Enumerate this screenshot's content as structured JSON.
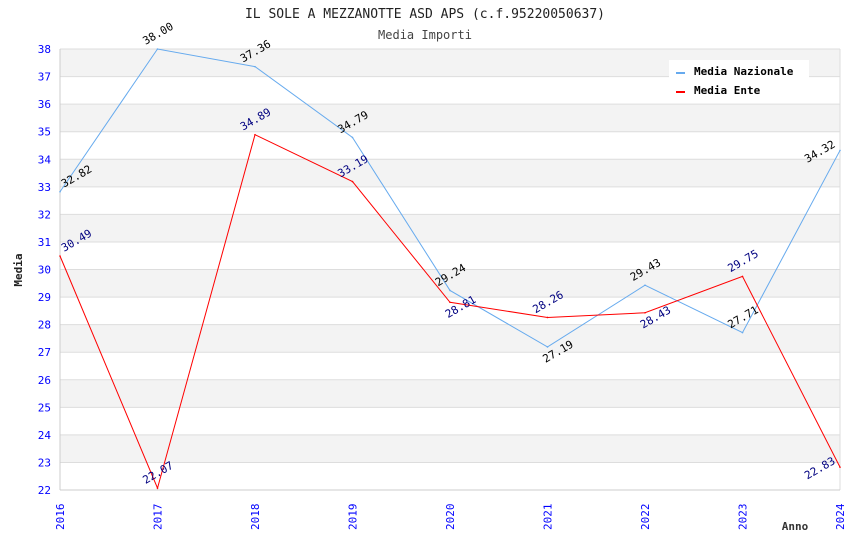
{
  "chart_data": {
    "type": "line",
    "title": "IL SOLE A MEZZANOTTE ASD APS (c.f.95220050637)",
    "subtitle": "Media Importi",
    "xlabel": "Anno",
    "ylabel": "Media",
    "x": [
      "2016",
      "2017",
      "2018",
      "2019",
      "2020",
      "2021",
      "2022",
      "2023",
      "2024"
    ],
    "ylim": [
      22,
      38
    ],
    "yticks": [
      "22",
      "23",
      "24",
      "25",
      "26",
      "27",
      "28",
      "29",
      "30",
      "31",
      "32",
      "33",
      "34",
      "35",
      "36",
      "37",
      "38"
    ],
    "grid": true,
    "legend_position": "top-right",
    "series": [
      {
        "name": "Media Nazionale",
        "color": "#66aaee",
        "label_color": "#000000",
        "values": [
          32.82,
          38.0,
          37.36,
          34.79,
          29.24,
          27.19,
          29.43,
          27.71,
          34.32
        ],
        "labels": [
          "32.82",
          "38.00",
          "37.36",
          "34.79",
          "29.24",
          "27.19",
          "29.43",
          "27.71",
          "34.32"
        ]
      },
      {
        "name": "Media Ente",
        "color": "#ff0000",
        "label_color": "#000080",
        "values": [
          30.49,
          22.07,
          34.89,
          33.19,
          28.81,
          28.26,
          28.43,
          29.75,
          22.83
        ],
        "labels": [
          "30.49",
          "22.07",
          "34.89",
          "33.19",
          "28.81",
          "28.26",
          "28.43",
          "29.75",
          "22.83"
        ]
      }
    ]
  }
}
